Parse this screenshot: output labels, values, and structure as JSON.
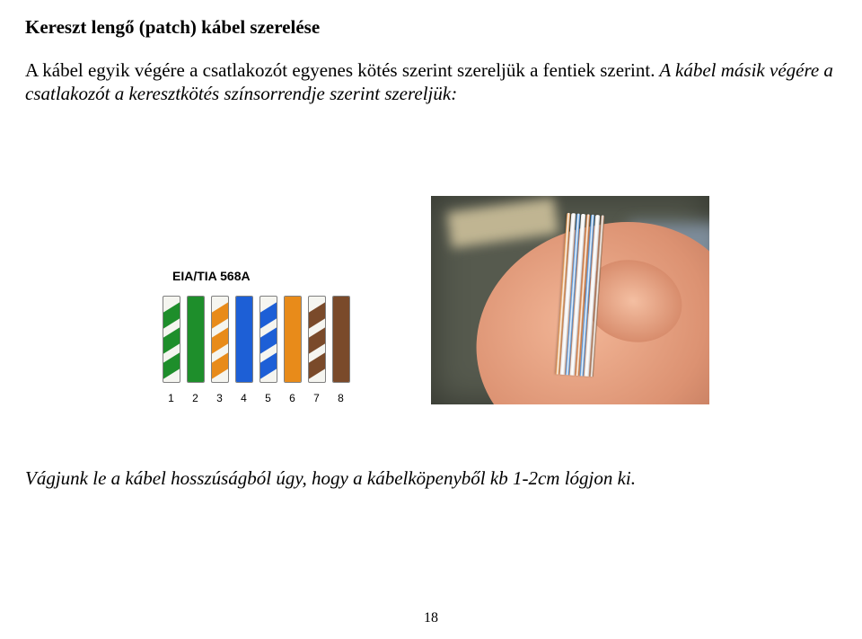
{
  "title": "Kereszt lengő (patch) kábel szerelése",
  "paragraph_plain": "A kábel egyik végére a csatlakozót egyenes kötés szerint szereljük a fentiek szerint.",
  "paragraph_italic": " A kábel másik végére a csatlakozót a keresztkötés színsorrendje szerint szereljük:",
  "diagram": {
    "label": "EIA/TIA 568A",
    "bg_color": "#f5f5f0",
    "border_color": "#808080",
    "wires": [
      {
        "type": "stripe",
        "color": "#1e8e2b"
      },
      {
        "type": "solid",
        "color": "#1e8e2b"
      },
      {
        "type": "stripe",
        "color": "#e88b1a"
      },
      {
        "type": "solid",
        "color": "#1d5fd6"
      },
      {
        "type": "stripe",
        "color": "#1d5fd6"
      },
      {
        "type": "solid",
        "color": "#e88b1a"
      },
      {
        "type": "stripe",
        "color": "#7a4a2a"
      },
      {
        "type": "solid",
        "color": "#7a4a2a"
      }
    ],
    "numbers": [
      "1",
      "2",
      "3",
      "4",
      "5",
      "6",
      "7",
      "8"
    ]
  },
  "photo": {
    "background": "#565a4e",
    "strand_colors": [
      "#d9802a",
      "#e8e8e8",
      "#2a7fd6",
      "#e8e8e8",
      "#d06a1e",
      "#2a7fd6",
      "#e8e8e8",
      "#8a5a38"
    ]
  },
  "bottom_text": "Vágjunk le a kábel hosszúságból úgy, hogy a kábelköpenyből kb 1-2cm lógjon ki.",
  "page_number": "18"
}
